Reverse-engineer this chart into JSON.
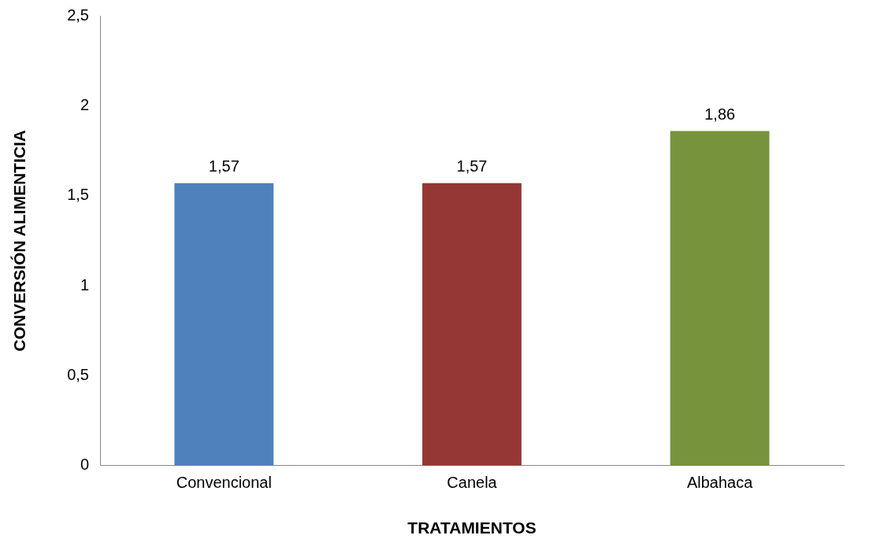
{
  "chart_data": {
    "type": "bar",
    "xlabel": "TRATAMIENTOS",
    "ylabel": "CONVERSIÓN ALIMENTICIA",
    "categories": [
      "Convencional",
      "Canela",
      "Albahaca"
    ],
    "values": [
      1.57,
      1.57,
      1.86
    ],
    "colors": [
      "#4f81bd",
      "#953735",
      "#77933c"
    ],
    "value_labels": [
      "1,57",
      "1,57",
      "1,86"
    ],
    "ylim": [
      0,
      2.5
    ],
    "yticks": [
      0,
      {
        "value": 0.5,
        "label": "0,5"
      },
      1,
      {
        "value": 1.5,
        "label": "1,5"
      },
      2,
      {
        "value": 2.5,
        "label": "2,5"
      }
    ],
    "grid": false,
    "legend": false
  }
}
